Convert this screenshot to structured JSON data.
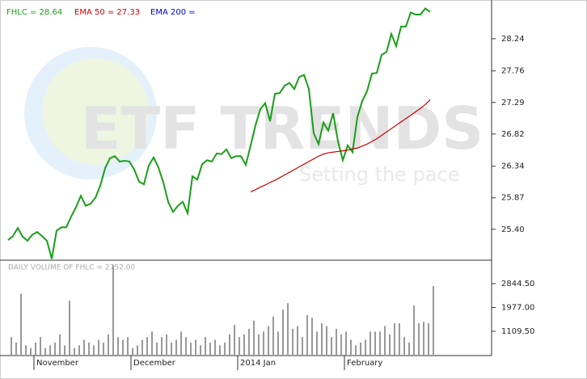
{
  "watermark": {
    "title": "ETF TRENDS",
    "subtitle": "Setting the pace"
  },
  "chart_data": [
    {
      "type": "line",
      "ylim": [
        24.94,
        28.72
      ],
      "yticks": [
        {
          "value": 25.4,
          "label": "25.40"
        },
        25.87,
        26.34,
        26.82,
        27.29,
        27.76,
        28.24
      ],
      "series": [
        {
          "name": "FHLC = 28.64",
          "color": "#1a9e1a",
          "values": [
            25.24,
            25.3,
            25.42,
            25.29,
            25.23,
            25.32,
            25.36,
            25.3,
            25.23,
            24.96,
            25.38,
            25.43,
            25.43,
            25.59,
            25.73,
            25.9,
            25.75,
            25.78,
            25.87,
            26.05,
            26.31,
            26.46,
            26.49,
            26.41,
            26.42,
            26.41,
            26.29,
            26.11,
            26.07,
            26.35,
            26.47,
            26.32,
            26.1,
            25.81,
            25.66,
            25.75,
            25.81,
            25.64,
            26.19,
            26.14,
            26.37,
            26.43,
            26.41,
            26.53,
            26.52,
            26.59,
            26.46,
            26.49,
            26.49,
            26.36,
            26.65,
            26.95,
            27.19,
            27.28,
            27.01,
            27.42,
            27.43,
            27.54,
            27.58,
            27.49,
            27.67,
            27.7,
            27.49,
            26.83,
            26.67,
            26.99,
            26.87,
            27.13,
            26.71,
            26.43,
            26.65,
            26.55,
            27.07,
            27.31,
            27.46,
            27.72,
            27.73,
            28.0,
            28.04,
            28.31,
            28.13,
            28.42,
            28.42,
            28.63,
            28.6,
            28.6,
            28.69,
            28.64
          ]
        },
        {
          "name": "EMA 50 = 27.33",
          "color": "#cc0000",
          "values": [
            null,
            null,
            null,
            null,
            null,
            null,
            null,
            null,
            null,
            null,
            null,
            null,
            null,
            null,
            null,
            null,
            null,
            null,
            null,
            null,
            null,
            null,
            null,
            null,
            null,
            null,
            null,
            null,
            null,
            null,
            null,
            null,
            null,
            null,
            null,
            null,
            null,
            null,
            null,
            null,
            null,
            null,
            null,
            null,
            null,
            null,
            null,
            null,
            null,
            null,
            25.96,
            25.99,
            26.03,
            26.06,
            26.1,
            26.13,
            26.17,
            26.21,
            26.25,
            26.29,
            26.33,
            26.37,
            26.41,
            26.45,
            26.49,
            26.52,
            26.54,
            26.55,
            26.56,
            26.57,
            26.58,
            26.6,
            26.61,
            26.64,
            26.67,
            26.71,
            26.75,
            26.8,
            26.85,
            26.9,
            26.95,
            27.0,
            27.05,
            27.1,
            27.15,
            27.2,
            27.26,
            27.33
          ]
        },
        {
          "name": "EMA 200 =",
          "color": "#0000cc",
          "values": [
            null,
            null,
            null,
            null,
            null,
            null,
            null,
            null,
            null,
            null,
            null,
            null,
            null,
            null,
            null,
            null,
            null,
            null,
            null,
            null,
            null,
            null,
            null,
            null,
            null,
            null,
            null,
            null,
            null,
            null,
            null,
            null,
            null,
            null,
            null,
            null,
            null,
            null,
            null,
            null,
            null,
            null,
            null,
            null,
            null,
            null,
            null,
            null,
            null,
            null,
            null,
            null,
            null,
            null,
            null,
            null,
            null,
            null,
            null,
            null,
            null,
            null,
            null,
            null,
            null,
            null,
            null,
            null,
            null,
            null,
            null,
            null,
            null,
            null,
            null,
            null,
            null,
            null,
            null,
            null,
            null,
            null,
            null,
            null,
            null,
            null,
            null,
            null
          ]
        }
      ]
    },
    {
      "type": "bar",
      "title": "DAILY VOLUME OF FHLC = 2752.00",
      "color": "#999999",
      "categories": [
        null,
        null,
        null,
        null,
        null,
        "November",
        null,
        null,
        null,
        null,
        null,
        null,
        null,
        null,
        null,
        null,
        null,
        null,
        null,
        null,
        null,
        null,
        null,
        null,
        null,
        "December",
        null,
        null,
        null,
        null,
        null,
        null,
        null,
        null,
        null,
        null,
        null,
        null,
        null,
        null,
        null,
        null,
        null,
        null,
        null,
        null,
        null,
        "2014 Jan",
        null,
        null,
        null,
        null,
        null,
        null,
        null,
        null,
        null,
        null,
        null,
        null,
        null,
        null,
        null,
        null,
        null,
        null,
        null,
        null,
        null,
        "February",
        null,
        null,
        null,
        null,
        null,
        null,
        null,
        null,
        null,
        null,
        null,
        null,
        null,
        null,
        null,
        null,
        null,
        null
      ],
      "values": [
        900,
        700,
        2480,
        600,
        500,
        700,
        900,
        500,
        600,
        700,
        1000,
        600,
        2230,
        500,
        600,
        800,
        700,
        600,
        800,
        700,
        1000,
        3520,
        900,
        800,
        900,
        500,
        600,
        800,
        900,
        1100,
        700,
        900,
        1000,
        700,
        800,
        1100,
        900,
        700,
        800,
        600,
        900,
        700,
        800,
        600,
        700,
        1000,
        1350,
        900,
        1000,
        1200,
        1500,
        1000,
        1100,
        1300,
        1650,
        1100,
        1900,
        2130,
        1200,
        1300,
        900,
        1700,
        1600,
        1100,
        1400,
        1300,
        900,
        1200,
        1000,
        1100,
        800,
        600,
        700,
        800,
        1100,
        1100,
        1100,
        1300,
        1000,
        1400,
        1400,
        900,
        700,
        2050,
        1400,
        1450,
        1400,
        2752
      ],
      "ylim": [
        227,
        3697
      ],
      "yticks": [
        {
          "value": 1109.5,
          "label": "1109.50"
        },
        {
          "value": 1977,
          "label": "1977.00"
        },
        {
          "value": 2844.5,
          "label": "2844.50"
        }
      ]
    }
  ]
}
